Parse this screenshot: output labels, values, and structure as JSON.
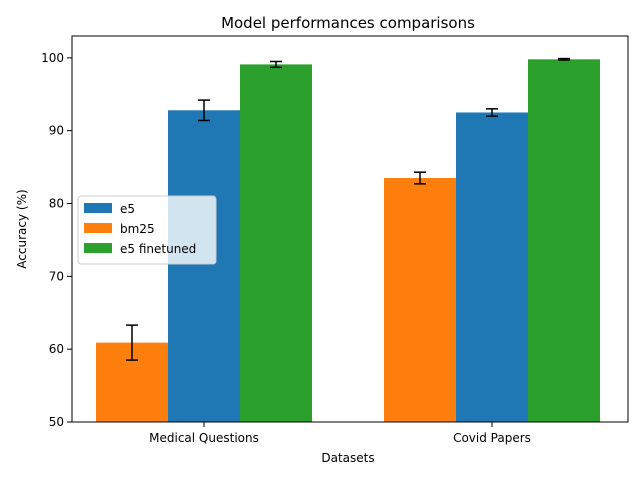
{
  "chart_data": {
    "type": "bar",
    "title": "Model performances comparisons",
    "xlabel": "Datasets",
    "ylabel": "Accuracy (%)",
    "categories": [
      "Medical Questions",
      "Covid Papers"
    ],
    "ylim": [
      50,
      103
    ],
    "yticks": [
      50,
      60,
      70,
      80,
      90,
      100
    ],
    "grid": false,
    "legend_position": "center-left",
    "legend_order": [
      "e5",
      "bm25",
      "e5 finetuned"
    ],
    "bar_order": [
      "bm25",
      "e5",
      "e5 finetuned"
    ],
    "series": [
      {
        "name": "bm25",
        "color": "#ff7f0e",
        "values": [
          60.9,
          83.5
        ],
        "errors": [
          2.4,
          0.8
        ]
      },
      {
        "name": "e5",
        "color": "#1f77b4",
        "values": [
          92.8,
          92.5
        ],
        "errors": [
          1.4,
          0.5
        ]
      },
      {
        "name": "e5 finetuned",
        "color": "#2ca02c",
        "values": [
          99.1,
          99.8
        ],
        "errors": [
          0.4,
          0.1
        ]
      }
    ]
  }
}
